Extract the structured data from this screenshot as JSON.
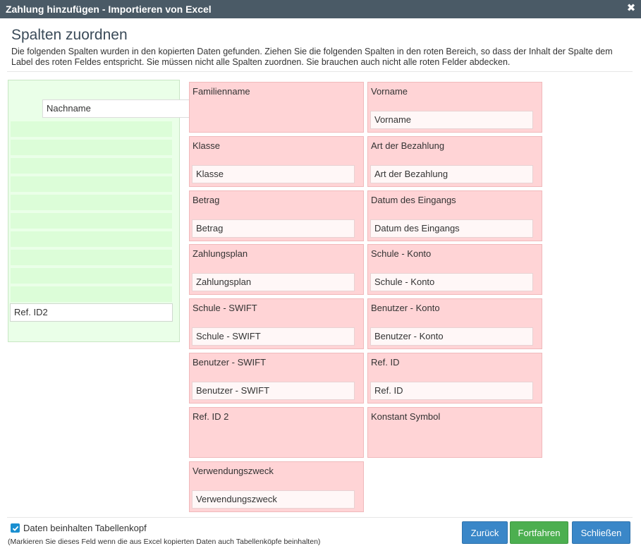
{
  "dialog": {
    "title": "Zahlung hinzufügen - Importieren von Excel",
    "close_icon": "close-icon"
  },
  "main": {
    "heading": "Spalten zuordnen",
    "description": "Die folgenden Spalten wurden in den kopierten Daten gefunden. Ziehen Sie die folgenden Spalten in den roten Bereich, so dass der Inhalt der Spalte dem Label des roten Feldes entspricht. Sie müssen nicht alle Spalten zuordnen. Sie brauchen auch nicht alle roten Felder abdecken."
  },
  "source_columns": {
    "dragging_item": "Nachname",
    "items": [
      "Ref. ID2"
    ]
  },
  "targets": [
    {
      "label": "Familienname",
      "mapped": ""
    },
    {
      "label": "Vorname",
      "mapped": "Vorname"
    },
    {
      "label": "Klasse",
      "mapped": "Klasse"
    },
    {
      "label": "Art der Bezahlung",
      "mapped": "Art der Bezahlung"
    },
    {
      "label": "Betrag",
      "mapped": "Betrag"
    },
    {
      "label": "Datum des Eingangs",
      "mapped": "Datum des Eingangs"
    },
    {
      "label": "Zahlungsplan",
      "mapped": "Zahlungsplan"
    },
    {
      "label": "Schule - Konto",
      "mapped": "Schule - Konto"
    },
    {
      "label": "Schule - SWIFT",
      "mapped": "Schule - SWIFT"
    },
    {
      "label": "Benutzer - Konto",
      "mapped": "Benutzer - Konto"
    },
    {
      "label": "Benutzer - SWIFT",
      "mapped": "Benutzer - SWIFT"
    },
    {
      "label": "Ref. ID",
      "mapped": "Ref. ID"
    },
    {
      "label": "Ref. ID 2",
      "mapped": ""
    },
    {
      "label": "Konstant Symbol",
      "mapped": ""
    },
    {
      "label": "Verwendungszweck",
      "mapped": "Verwendungszweck"
    }
  ],
  "footer": {
    "checkbox_label": "Daten beinhalten Tabellenkopf",
    "checkbox_checked": true,
    "hint": "(Markieren Sie dieses Feld wenn die aus Excel kopierten Daten auch Tabellenköpfe beinhalten)",
    "back_label": "Zurück",
    "continue_label": "Fortfahren",
    "close_label": "Schließen"
  },
  "colors": {
    "titlebar": "#4a5a66",
    "target_bg": "#ffd4d6",
    "source_bg": "#eaffe8",
    "primary_button": "#3a87c8",
    "success_button": "#4caf50"
  }
}
